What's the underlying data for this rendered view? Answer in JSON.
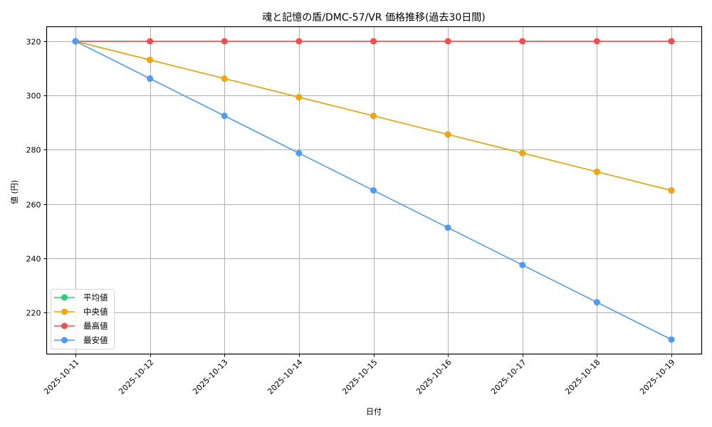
{
  "chart_data": {
    "type": "line",
    "title": "魂と記憶の盾/DMC-57/VR 価格推移(過去30日間)",
    "xlabel": "日付",
    "ylabel": "値 (円)",
    "x": [
      "2025-10-11",
      "2025-10-12",
      "2025-10-13",
      "2025-10-14",
      "2025-10-15",
      "2025-10-16",
      "2025-10-17",
      "2025-10-18",
      "2025-10-19"
    ],
    "yticks": [
      220,
      240,
      260,
      280,
      300,
      320
    ],
    "ylim": [
      204.5,
      325.5
    ],
    "grid": true,
    "legend_position": "lower left",
    "series": [
      {
        "name": "平均値",
        "color": "#2ecc71",
        "values": [
          320,
          313.125,
          306.25,
          299.375,
          292.5,
          285.625,
          278.75,
          271.875,
          265
        ]
      },
      {
        "name": "中央値",
        "color": "#f5a40c",
        "values": [
          320,
          313.125,
          306.25,
          299.375,
          292.5,
          285.625,
          278.75,
          271.875,
          265
        ]
      },
      {
        "name": "最高値",
        "color": "#f44b4b",
        "values": [
          320,
          320,
          320,
          320,
          320,
          320,
          320,
          320,
          320
        ]
      },
      {
        "name": "最安値",
        "color": "#4c9bff",
        "values": [
          320,
          306.25,
          292.5,
          278.75,
          265,
          251.25,
          237.5,
          223.75,
          210
        ]
      }
    ]
  }
}
